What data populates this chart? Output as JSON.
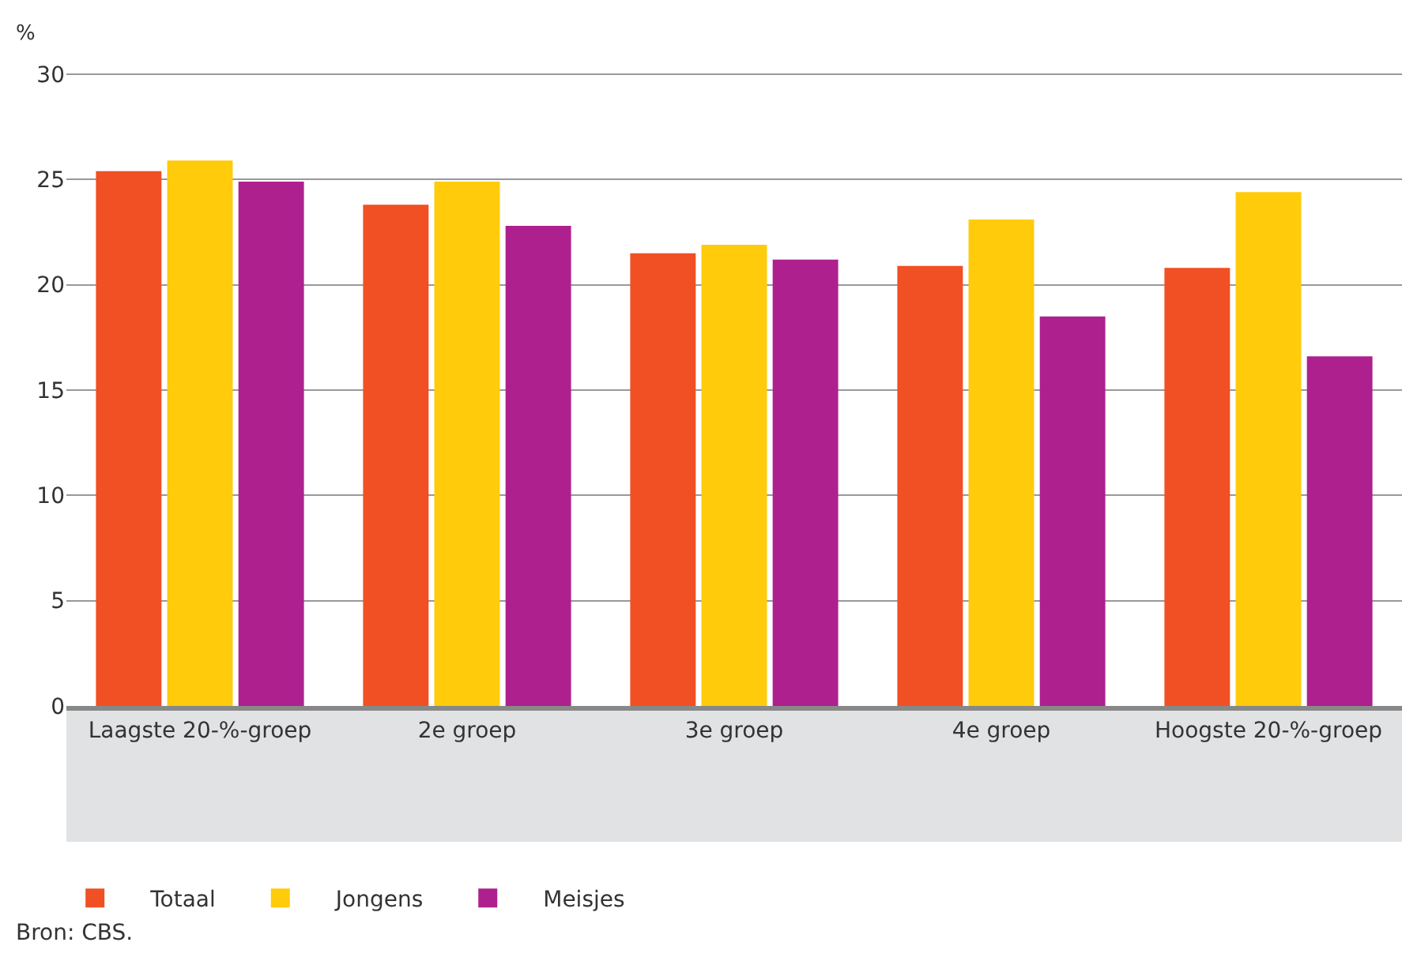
{
  "chart_data": {
    "type": "bar",
    "ylabel": "%",
    "categories": [
      "Laagste 20-%-groep",
      "2e groep",
      "3e groep",
      "4e groep",
      "Hoogste 20-%-groep"
    ],
    "series": [
      {
        "name": "Totaal",
        "color": "#f05023",
        "values": [
          25.4,
          23.8,
          21.5,
          20.9,
          20.8
        ]
      },
      {
        "name": "Jongens",
        "color": "#ffcb0a",
        "values": [
          25.9,
          24.9,
          21.9,
          23.1,
          24.4
        ]
      },
      {
        "name": "Meisjes",
        "color": "#ae208e",
        "values": [
          24.9,
          22.8,
          21.2,
          18.5,
          16.6
        ]
      }
    ],
    "ylim": [
      0,
      30
    ],
    "yticks": [
      0,
      5,
      10,
      15,
      20,
      25,
      30
    ],
    "grid": "y",
    "legend": "bottom",
    "annotations": [
      "Bron: CBS."
    ]
  }
}
